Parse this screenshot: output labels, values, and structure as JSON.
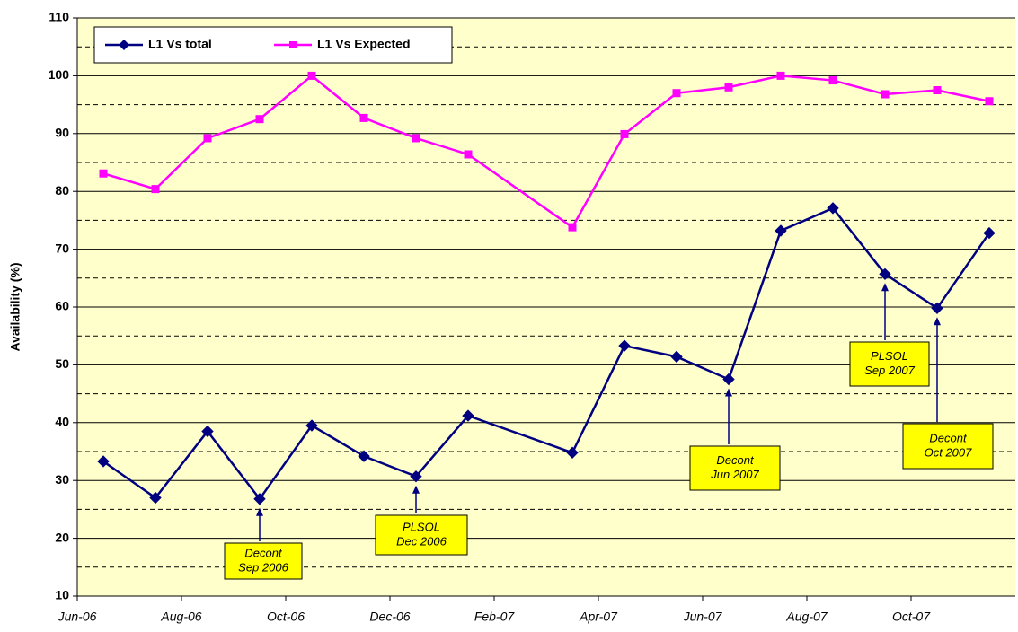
{
  "chart_data": {
    "type": "line",
    "ylabel": "Availability (%)",
    "categories": [
      "Jun-06",
      null,
      "Aug-06",
      null,
      "Oct-06",
      null,
      "Dec-06",
      null,
      "Feb-07",
      null,
      "Apr-07",
      null,
      "Jun-07",
      null,
      "Aug-07",
      null,
      "Oct-07",
      null
    ],
    "series": [
      {
        "name": "L1 Vs total",
        "color": "#000080",
        "marker": "diamond",
        "values": [
          33.3,
          27,
          38.5,
          26.8,
          39.5,
          34.2,
          30.7,
          41.2,
          null,
          34.8,
          53.3,
          51.4,
          47.5,
          73.2,
          77.1,
          65.7,
          59.8,
          72.8
        ]
      },
      {
        "name": "L1 Vs Expected",
        "color": "#ff00ff",
        "marker": "square",
        "values": [
          83.1,
          80.4,
          89.2,
          92.5,
          100,
          92.7,
          89.2,
          86.4,
          null,
          73.8,
          89.9,
          97,
          98,
          100,
          99.2,
          96.8,
          97.5,
          95.6
        ]
      }
    ],
    "connect_gaps": true,
    "ylim": [
      10,
      110
    ],
    "yticks": [
      10,
      20,
      30,
      40,
      50,
      60,
      70,
      80,
      90,
      100,
      110
    ],
    "yminor": [
      15,
      25,
      35,
      45,
      55,
      65,
      75,
      85,
      95,
      105
    ],
    "grid": true,
    "legend": "top-left",
    "plot_background": "#ffffcc",
    "annotations": [
      {
        "lines": [
          "Decont",
          "Sep 2006"
        ]
      },
      {
        "lines": [
          "PLSOL",
          "Dec 2006"
        ]
      },
      {
        "lines": [
          "Decont",
          "Jun 2007"
        ]
      },
      {
        "lines": [
          "PLSOL",
          "Sep 2007"
        ]
      },
      {
        "lines": [
          "Decont",
          "Oct 2007"
        ]
      }
    ]
  }
}
